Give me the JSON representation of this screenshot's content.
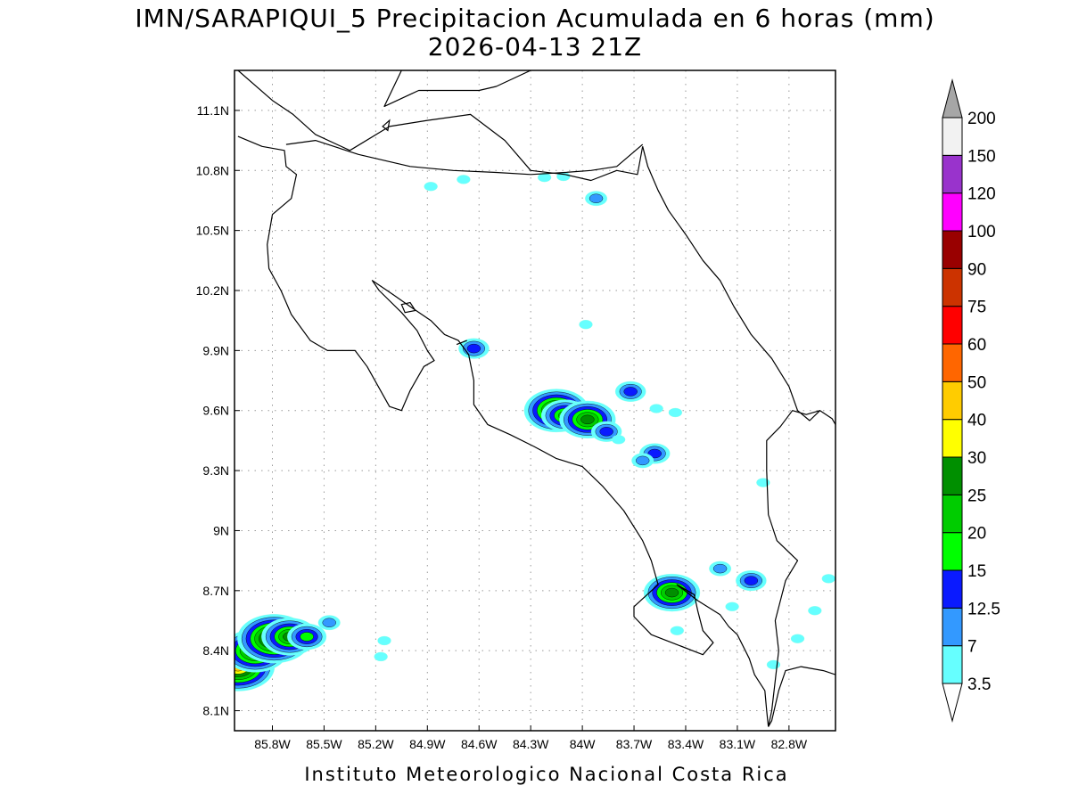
{
  "title_line1": "IMN/SARAPIQUI_5 Precipitacion Acumulada en 6 horas (mm)",
  "title_line2": "2026-04-13 21Z",
  "credit": "Instituto Meteorologico Nacional Costa Rica",
  "map": {
    "lon_range": [
      -86.02,
      -82.53
    ],
    "lat_range": [
      8.0,
      11.3
    ],
    "grid": true,
    "lon_ticks": [
      {
        "value": -85.8,
        "label": "85.8W"
      },
      {
        "value": -85.5,
        "label": "85.5W"
      },
      {
        "value": -85.2,
        "label": "85.2W"
      },
      {
        "value": -84.9,
        "label": "84.9W"
      },
      {
        "value": -84.6,
        "label": "84.6W"
      },
      {
        "value": -84.3,
        "label": "84.3W"
      },
      {
        "value": -84.0,
        "label": "84W"
      },
      {
        "value": -83.7,
        "label": "83.7W"
      },
      {
        "value": -83.4,
        "label": "83.4W"
      },
      {
        "value": -83.1,
        "label": "83.1W"
      },
      {
        "value": -82.8,
        "label": "82.8W"
      }
    ],
    "lat_ticks": [
      {
        "value": 11.1,
        "label": "11.1N"
      },
      {
        "value": 10.8,
        "label": "10.8N"
      },
      {
        "value": 10.5,
        "label": "10.5N"
      },
      {
        "value": 10.2,
        "label": "10.2N"
      },
      {
        "value": 9.9,
        "label": "9.9N"
      },
      {
        "value": 9.6,
        "label": "9.6N"
      },
      {
        "value": 9.3,
        "label": "9.3N"
      },
      {
        "value": 9.0,
        "label": "9N"
      },
      {
        "value": 8.7,
        "label": "8.7N"
      },
      {
        "value": 8.4,
        "label": "8.4N"
      },
      {
        "value": 8.1,
        "label": "8.1N"
      }
    ],
    "precip_cells": [
      {
        "lon": -84.69,
        "lat": 10.755,
        "peak": 4
      },
      {
        "lon": -84.22,
        "lat": 10.765,
        "peak": 5
      },
      {
        "lon": -84.11,
        "lat": 10.77,
        "peak": 4
      },
      {
        "lon": -83.92,
        "lat": 10.66,
        "peak": 8
      },
      {
        "lon": -84.88,
        "lat": 10.72,
        "peak": 4
      },
      {
        "lon": -84.63,
        "lat": 9.91,
        "peak": 14
      },
      {
        "lon": -83.98,
        "lat": 10.03,
        "peak": 4
      },
      {
        "lon": -84.15,
        "lat": 9.6,
        "peak": 33
      },
      {
        "lon": -84.1,
        "lat": 9.575,
        "peak": 22
      },
      {
        "lon": -83.97,
        "lat": 9.555,
        "peak": 27
      },
      {
        "lon": -83.86,
        "lat": 9.495,
        "peak": 14
      },
      {
        "lon": -83.79,
        "lat": 9.455,
        "peak": 6
      },
      {
        "lon": -83.72,
        "lat": 9.695,
        "peak": 14
      },
      {
        "lon": -83.57,
        "lat": 9.61,
        "peak": 4
      },
      {
        "lon": -83.58,
        "lat": 9.385,
        "peak": 14
      },
      {
        "lon": -83.65,
        "lat": 9.35,
        "peak": 9
      },
      {
        "lon": -83.46,
        "lat": 9.59,
        "peak": 4
      },
      {
        "lon": -82.95,
        "lat": 9.24,
        "peak": 4
      },
      {
        "lon": -83.48,
        "lat": 8.69,
        "peak": 28
      },
      {
        "lon": -83.45,
        "lat": 8.5,
        "peak": 5
      },
      {
        "lon": -83.2,
        "lat": 8.81,
        "peak": 9
      },
      {
        "lon": -83.02,
        "lat": 8.75,
        "peak": 14
      },
      {
        "lon": -83.13,
        "lat": 8.62,
        "peak": 5
      },
      {
        "lon": -82.65,
        "lat": 8.6,
        "peak": 6
      },
      {
        "lon": -82.75,
        "lat": 8.46,
        "peak": 4
      },
      {
        "lon": -82.89,
        "lat": 8.33,
        "peak": 5
      },
      {
        "lon": -82.57,
        "lat": 8.76,
        "peak": 4
      },
      {
        "lon": -86.0,
        "lat": 8.32,
        "peak": 40
      },
      {
        "lon": -85.9,
        "lat": 8.4,
        "peak": 34
      },
      {
        "lon": -85.79,
        "lat": 8.46,
        "peak": 40
      },
      {
        "lon": -85.7,
        "lat": 8.47,
        "peak": 28
      },
      {
        "lon": -85.6,
        "lat": 8.47,
        "peak": 16
      },
      {
        "lon": -85.47,
        "lat": 8.54,
        "peak": 8
      },
      {
        "lon": -85.15,
        "lat": 8.45,
        "peak": 6
      },
      {
        "lon": -85.17,
        "lat": 8.37,
        "peak": 5
      }
    ],
    "coastlines": [
      [
        [
          -86.0,
          11.3
        ],
        [
          -85.8,
          11.15
        ],
        [
          -85.68,
          11.08
        ],
        [
          -85.55,
          10.98
        ],
        [
          -85.35,
          10.9
        ],
        [
          -85.12,
          11.02
        ],
        [
          -84.9,
          11.05
        ],
        [
          -84.65,
          11.08
        ],
        [
          -84.45,
          10.95
        ],
        [
          -84.3,
          10.8
        ],
        [
          -84.1,
          10.78
        ],
        [
          -83.95,
          10.75
        ],
        [
          -83.8,
          10.8
        ],
        [
          -83.68,
          10.78
        ],
        [
          -83.65,
          10.92
        ]
      ],
      [
        [
          -84.3,
          11.3
        ],
        [
          -84.5,
          11.22
        ],
        [
          -84.6,
          11.2
        ],
        [
          -84.8,
          11.2
        ],
        [
          -84.95,
          11.2
        ],
        [
          -85.0,
          11.18
        ],
        [
          -85.15,
          11.12
        ],
        [
          -85.05,
          11.3
        ]
      ],
      [
        [
          -86.0,
          10.97
        ],
        [
          -85.86,
          10.92
        ],
        [
          -85.73,
          10.9
        ],
        [
          -85.72,
          10.82
        ],
        [
          -85.66,
          10.78
        ],
        [
          -85.69,
          10.66
        ],
        [
          -85.8,
          10.58
        ],
        [
          -85.83,
          10.43
        ],
        [
          -85.82,
          10.31
        ],
        [
          -85.75,
          10.2
        ],
        [
          -85.69,
          10.08
        ],
        [
          -85.58,
          9.95
        ],
        [
          -85.48,
          9.9
        ],
        [
          -85.32,
          9.9
        ],
        [
          -85.25,
          9.82
        ],
        [
          -85.12,
          9.62
        ],
        [
          -85.05,
          9.6
        ],
        [
          -85.0,
          9.7
        ],
        [
          -84.92,
          9.82
        ],
        [
          -84.86,
          9.85
        ],
        [
          -84.9,
          9.9
        ],
        [
          -84.96,
          10.0
        ],
        [
          -85.05,
          10.09
        ],
        [
          -85.18,
          10.2
        ],
        [
          -85.22,
          10.25
        ],
        [
          -85.1,
          10.18
        ],
        [
          -85.0,
          10.12
        ],
        [
          -84.88,
          10.05
        ],
        [
          -84.8,
          9.98
        ],
        [
          -84.72,
          9.95
        ],
        [
          -84.66,
          9.88
        ],
        [
          -84.63,
          9.75
        ],
        [
          -84.63,
          9.63
        ],
        [
          -84.55,
          9.53
        ],
        [
          -84.42,
          9.48
        ],
        [
          -84.28,
          9.42
        ],
        [
          -84.15,
          9.36
        ],
        [
          -84.0,
          9.32
        ],
        [
          -83.88,
          9.22
        ],
        [
          -83.76,
          9.1
        ],
        [
          -83.65,
          8.95
        ],
        [
          -83.6,
          8.85
        ],
        [
          -83.56,
          8.73
        ],
        [
          -83.7,
          8.62
        ],
        [
          -83.7,
          8.57
        ],
        [
          -83.6,
          8.48
        ],
        [
          -83.45,
          8.43
        ],
        [
          -83.3,
          8.38
        ],
        [
          -83.24,
          8.44
        ],
        [
          -83.3,
          8.5
        ],
        [
          -83.33,
          8.6
        ],
        [
          -83.35,
          8.68
        ],
        [
          -83.45,
          8.73
        ],
        [
          -83.33,
          8.65
        ],
        [
          -83.2,
          8.58
        ],
        [
          -83.15,
          8.52
        ],
        [
          -83.1,
          8.48
        ],
        [
          -83.03,
          8.36
        ],
        [
          -83.0,
          8.28
        ],
        [
          -82.94,
          8.2
        ],
        [
          -82.93,
          8.1
        ],
        [
          -82.92,
          8.02
        ]
      ],
      [
        [
          -83.65,
          10.92
        ],
        [
          -83.62,
          10.82
        ],
        [
          -83.56,
          10.7
        ],
        [
          -83.5,
          10.6
        ],
        [
          -83.4,
          10.48
        ],
        [
          -83.3,
          10.35
        ],
        [
          -83.2,
          10.25
        ],
        [
          -83.12,
          10.12
        ],
        [
          -83.02,
          9.98
        ],
        [
          -82.9,
          9.86
        ],
        [
          -82.8,
          9.72
        ],
        [
          -82.75,
          9.6
        ],
        [
          -82.68,
          9.55
        ],
        [
          -82.62,
          9.6
        ],
        [
          -82.55,
          9.56
        ],
        [
          -82.53,
          9.53
        ]
      ],
      [
        [
          -82.53,
          8.28
        ],
        [
          -82.6,
          8.3
        ],
        [
          -82.73,
          8.32
        ],
        [
          -82.82,
          8.3
        ],
        [
          -82.86,
          8.2
        ],
        [
          -82.9,
          8.05
        ],
        [
          -82.92,
          8.02
        ]
      ],
      [
        [
          -84.73,
          9.93
        ],
        [
          -84.67,
          9.95
        ]
      ]
    ],
    "borders": [
      [
        [
          -85.72,
          10.93
        ],
        [
          -85.55,
          10.95
        ],
        [
          -85.3,
          10.88
        ],
        [
          -85.0,
          10.82
        ],
        [
          -84.75,
          10.8
        ],
        [
          -84.5,
          10.79
        ],
        [
          -84.3,
          10.78
        ],
        [
          -84.1,
          10.79
        ],
        [
          -83.95,
          10.8
        ],
        [
          -83.8,
          10.82
        ],
        [
          -83.65,
          10.93
        ]
      ],
      [
        [
          -82.92,
          8.02
        ],
        [
          -82.9,
          8.1
        ],
        [
          -82.88,
          8.25
        ],
        [
          -82.86,
          8.4
        ],
        [
          -82.88,
          8.55
        ],
        [
          -82.82,
          8.75
        ],
        [
          -82.75,
          8.85
        ],
        [
          -82.87,
          8.95
        ],
        [
          -82.92,
          9.08
        ],
        [
          -82.93,
          9.3
        ],
        [
          -82.93,
          9.45
        ],
        [
          -82.85,
          9.52
        ],
        [
          -82.78,
          9.6
        ],
        [
          -82.7,
          9.58
        ],
        [
          -82.62,
          9.6
        ]
      ]
    ],
    "lakes": [
      [
        [
          -85.16,
          11.02
        ],
        [
          -85.12,
          11.05
        ],
        [
          -85.13,
          11.0
        ]
      ],
      [
        [
          -85.05,
          10.13
        ],
        [
          -85.0,
          10.14
        ],
        [
          -84.97,
          10.1
        ],
        [
          -85.03,
          10.09
        ]
      ]
    ]
  },
  "colorbar": {
    "levels": [
      3.5,
      7,
      12.5,
      15,
      20,
      25,
      30,
      40,
      50,
      60,
      75,
      90,
      100,
      120,
      150,
      200
    ],
    "labels": [
      "3.5",
      "7",
      "12.5",
      "15",
      "20",
      "25",
      "30",
      "40",
      "50",
      "60",
      "75",
      "90",
      "100",
      "120",
      "150",
      "200"
    ],
    "colors": [
      "#66ffff",
      "#3399ff",
      "#0a1aff",
      "#00ff00",
      "#00cc00",
      "#008f00",
      "#ffff00",
      "#ffcc00",
      "#ff6600",
      "#ff0000",
      "#cc3300",
      "#990000",
      "#ff00ff",
      "#9933cc",
      "#f2f2f2"
    ],
    "under_color": "#ffffff",
    "over_color": "#a6a6a6"
  }
}
